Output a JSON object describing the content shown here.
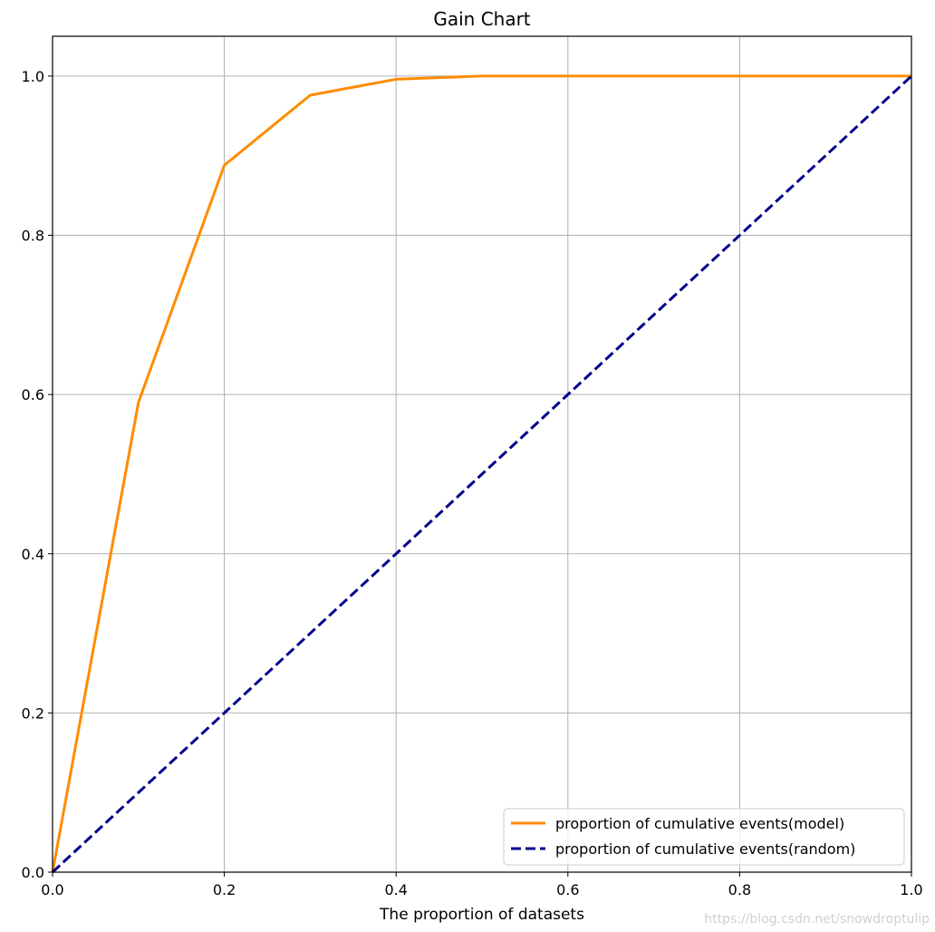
{
  "chart_data": {
    "type": "line",
    "title": "Gain Chart",
    "xlabel": "The proportion of datasets",
    "ylabel": "",
    "xlim": [
      0,
      1
    ],
    "ylim": [
      0,
      1.05
    ],
    "xticks": [
      "0.0",
      "0.2",
      "0.4",
      "0.6",
      "0.8",
      "1.0"
    ],
    "yticks": [
      "0.0",
      "0.2",
      "0.4",
      "0.6",
      "0.8",
      "1.0"
    ],
    "grid": true,
    "legend_position": "lower-right",
    "series": [
      {
        "name": "proportion of cumulative events(model)",
        "color": "#ff8c00",
        "linestyle": "solid",
        "x": [
          0.0,
          0.1,
          0.2,
          0.3,
          0.4,
          0.5,
          0.6,
          0.7,
          0.8,
          0.9,
          1.0
        ],
        "y": [
          0.0,
          0.59,
          0.888,
          0.976,
          0.996,
          1.0,
          1.0,
          1.0,
          1.0,
          1.0,
          1.0
        ]
      },
      {
        "name": "proportion of cumulative events(random)",
        "color": "#00008b",
        "linestyle": "dashed",
        "x": [
          0.0,
          1.0
        ],
        "y": [
          0.0,
          1.0
        ]
      }
    ]
  },
  "watermark": "https://blog.csdn.net/snowdroptulip"
}
